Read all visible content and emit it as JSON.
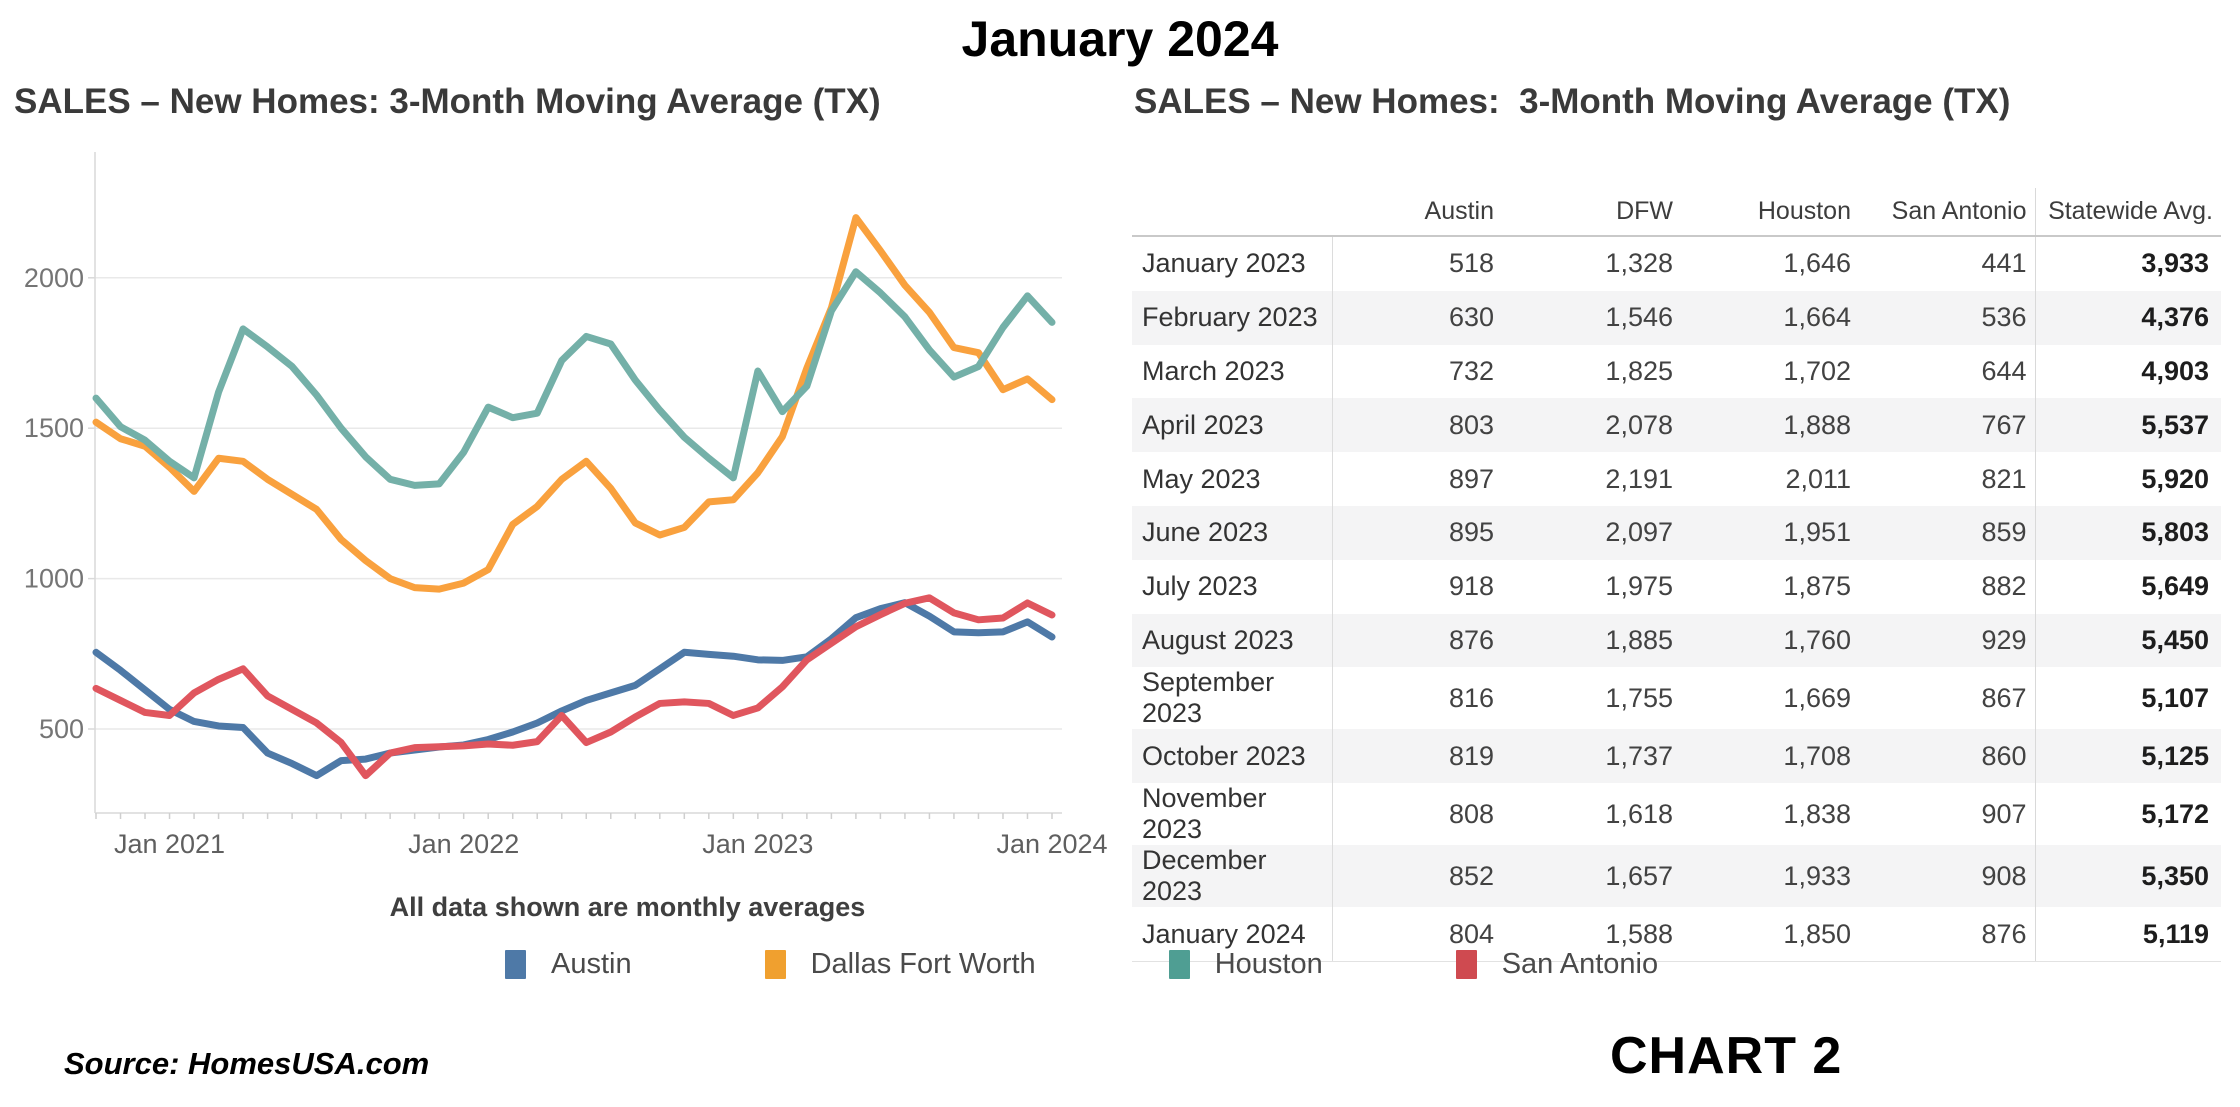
{
  "page_title": "January 2024",
  "left_chart": {
    "title": "SALES – New Homes: 3-Month Moving Average (TX)",
    "footnote": "All data shown are monthly averages"
  },
  "chart_data": {
    "type": "line",
    "title": "SALES – New Homes: 3-Month Moving Average (TX)",
    "xlabel": "",
    "ylabel": "",
    "ylim": [
      250,
      2350
    ],
    "y_ticks": [
      500,
      1000,
      1500,
      2000
    ],
    "grid": "horizontal",
    "legend_position": "bottom",
    "months": [
      "Oct 2020",
      "Nov 2020",
      "Dec 2020",
      "Jan 2021",
      "Feb 2021",
      "Mar 2021",
      "Apr 2021",
      "May 2021",
      "Jun 2021",
      "Jul 2021",
      "Aug 2021",
      "Sep 2021",
      "Oct 2021",
      "Nov 2021",
      "Dec 2021",
      "Jan 2022",
      "Feb 2022",
      "Mar 2022",
      "Apr 2022",
      "May 2022",
      "Jun 2022",
      "Jul 2022",
      "Aug 2022",
      "Sep 2022",
      "Oct 2022",
      "Nov 2022",
      "Dec 2022",
      "Jan 2023",
      "Feb 2023",
      "Mar 2023",
      "Apr 2023",
      "May 2023",
      "Jun 2023",
      "Jul 2023",
      "Aug 2023",
      "Sep 2023",
      "Oct 2023",
      "Nov 2023",
      "Dec 2023",
      "Jan 2024"
    ],
    "x_tick_labels": [
      "Jan 2021",
      "Jan 2022",
      "Jan 2023",
      "Jan 2024"
    ],
    "series": [
      {
        "name": "Austin",
        "color": "#4e79a7",
        "swatch": "#4e79a7",
        "values": [
          755,
          695,
          630,
          565,
          525,
          510,
          505,
          420,
          385,
          345,
          395,
          400,
          420,
          430,
          440,
          447,
          465,
          490,
          520,
          560,
          595,
          620,
          645,
          700,
          755,
          748,
          742,
          730,
          728,
          740,
          800,
          870,
          900,
          920,
          875,
          823,
          820,
          823,
          856,
          806
        ]
      },
      {
        "name": "Dallas Fort Worth",
        "color": "#f9a13e",
        "swatch": "#f0a02f",
        "values": [
          1520,
          1465,
          1440,
          1370,
          1290,
          1400,
          1390,
          1330,
          1280,
          1230,
          1130,
          1060,
          1000,
          970,
          965,
          985,
          1030,
          1180,
          1240,
          1330,
          1390,
          1300,
          1185,
          1145,
          1170,
          1255,
          1262,
          1352,
          1472,
          1700,
          1900,
          2200,
          2090,
          1975,
          1885,
          1768,
          1751,
          1628,
          1664,
          1595
        ]
      },
      {
        "name": "Houston",
        "color": "#74b0a8",
        "swatch": "#4f9e93",
        "values": [
          1600,
          1505,
          1460,
          1390,
          1335,
          1620,
          1830,
          1770,
          1705,
          1610,
          1500,
          1405,
          1330,
          1310,
          1315,
          1420,
          1570,
          1535,
          1550,
          1725,
          1805,
          1780,
          1660,
          1560,
          1470,
          1400,
          1335,
          1690,
          1555,
          1640,
          1890,
          2020,
          1950,
          1870,
          1760,
          1670,
          1705,
          1835,
          1940,
          1852
        ]
      },
      {
        "name": "San Antonio",
        "color": "#e0565e",
        "swatch": "#cf4a50",
        "values": [
          635,
          595,
          555,
          545,
          620,
          665,
          700,
          610,
          565,
          520,
          455,
          345,
          420,
          438,
          441,
          444,
          450,
          446,
          458,
          545,
          455,
          490,
          540,
          585,
          590,
          585,
          545,
          570,
          640,
          730,
          785,
          840,
          880,
          918,
          936,
          886,
          863,
          869,
          919,
          879
        ]
      }
    ]
  },
  "right_table": {
    "title": "SALES – New Homes:  3-Month Moving Average (TX)",
    "columns": [
      "",
      "Austin",
      "DFW",
      "Houston",
      "San Antonio",
      "Statewide Avg."
    ],
    "rows": [
      {
        "label": "January 2023",
        "values": [
          "518",
          "1,328",
          "1,646",
          "441"
        ],
        "statewide_avg": "3,933"
      },
      {
        "label": "February 2023",
        "values": [
          "630",
          "1,546",
          "1,664",
          "536"
        ],
        "statewide_avg": "4,376"
      },
      {
        "label": "March 2023",
        "values": [
          "732",
          "1,825",
          "1,702",
          "644"
        ],
        "statewide_avg": "4,903"
      },
      {
        "label": "April 2023",
        "values": [
          "803",
          "2,078",
          "1,888",
          "767"
        ],
        "statewide_avg": "5,537"
      },
      {
        "label": "May 2023",
        "values": [
          "897",
          "2,191",
          "2,011",
          "821"
        ],
        "statewide_avg": "5,920"
      },
      {
        "label": "June 2023",
        "values": [
          "895",
          "2,097",
          "1,951",
          "859"
        ],
        "statewide_avg": "5,803"
      },
      {
        "label": "July 2023",
        "values": [
          "918",
          "1,975",
          "1,875",
          "882"
        ],
        "statewide_avg": "5,649"
      },
      {
        "label": "August 2023",
        "values": [
          "876",
          "1,885",
          "1,760",
          "929"
        ],
        "statewide_avg": "5,450"
      },
      {
        "label": "September 2023",
        "values": [
          "816",
          "1,755",
          "1,669",
          "867"
        ],
        "statewide_avg": "5,107"
      },
      {
        "label": "October 2023",
        "values": [
          "819",
          "1,737",
          "1,708",
          "860"
        ],
        "statewide_avg": "5,125"
      },
      {
        "label": "November 2023",
        "values": [
          "808",
          "1,618",
          "1,838",
          "907"
        ],
        "statewide_avg": "5,172"
      },
      {
        "label": "December 2023",
        "values": [
          "852",
          "1,657",
          "1,933",
          "908"
        ],
        "statewide_avg": "5,350"
      },
      {
        "label": "January 2024",
        "values": [
          "804",
          "1,588",
          "1,850",
          "876"
        ],
        "statewide_avg": "5,119"
      }
    ]
  },
  "legend": {
    "items": [
      {
        "label": "Austin",
        "color": "#4e79a7"
      },
      {
        "label": "Dallas Fort Worth",
        "color": "#f0a02f"
      },
      {
        "label": "Houston",
        "color": "#4f9e93"
      },
      {
        "label": "San Antonio",
        "color": "#cf4a50"
      }
    ]
  },
  "footer": {
    "source": "Source: HomesUSA.com",
    "chart_label": "CHART 2"
  }
}
